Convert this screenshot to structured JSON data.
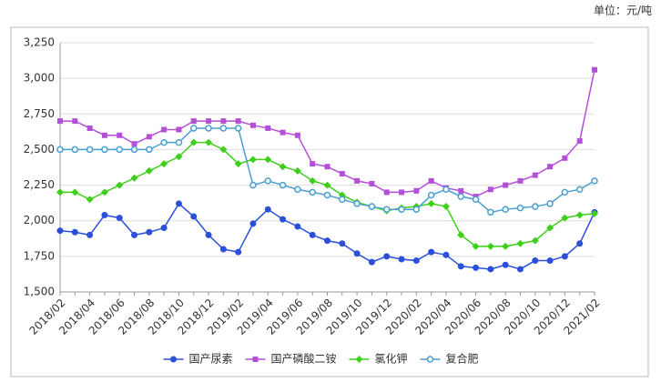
{
  "chart_data": {
    "type": "line",
    "unit": "单位：元/吨",
    "categories": [
      "2018/02",
      null,
      "2018/04",
      null,
      "2018/06",
      null,
      "2018/08",
      null,
      "2018/10",
      null,
      "2018/12",
      null,
      "2019/02",
      null,
      "2019/04",
      null,
      "2019/06",
      null,
      "2019/08",
      null,
      "2019/10",
      null,
      "2019/12",
      null,
      "2020/02",
      null,
      "2020/04",
      null,
      "2020/06",
      null,
      "2020/08",
      null,
      "2020/10",
      null,
      "2020/12",
      null,
      "2021/02"
    ],
    "series": [
      {
        "name": "国产尿素",
        "color": "#2b4fd8",
        "marker": "circle",
        "values": [
          1930,
          1920,
          1900,
          2040,
          2020,
          1900,
          1920,
          1950,
          2120,
          2030,
          1900,
          1800,
          1780,
          1980,
          2080,
          2010,
          1960,
          1900,
          1860,
          1840,
          1770,
          1710,
          1750,
          1730,
          1720,
          1780,
          1760,
          1680,
          1670,
          1660,
          1690,
          1660,
          1720,
          1720,
          1750,
          1840,
          2060
        ]
      },
      {
        "name": "国产磷酸二铵",
        "color": "#b44fd8",
        "marker": "square",
        "values": [
          2700,
          2700,
          2650,
          2600,
          2600,
          2540,
          2590,
          2640,
          2640,
          2700,
          2700,
          2700,
          2700,
          2670,
          2650,
          2620,
          2600,
          2400,
          2380,
          2330,
          2280,
          2260,
          2200,
          2200,
          2210,
          2280,
          2230,
          2210,
          2170,
          2220,
          2250,
          2280,
          2320,
          2380,
          2440,
          2560,
          3060
        ]
      },
      {
        "name": "氯化钾",
        "color": "#3ecf1a",
        "marker": "diamond",
        "values": [
          2200,
          2200,
          2150,
          2200,
          2250,
          2300,
          2350,
          2400,
          2450,
          2550,
          2550,
          2500,
          2400,
          2430,
          2430,
          2380,
          2350,
          2280,
          2250,
          2180,
          2130,
          2100,
          2070,
          2090,
          2100,
          2120,
          2100,
          1900,
          1820,
          1820,
          1820,
          1840,
          1860,
          1950,
          2020,
          2040,
          2050
        ]
      },
      {
        "name": "复合肥",
        "color": "#4a9fd0",
        "marker": "hollow-circle",
        "values": [
          2500,
          2500,
          2500,
          2500,
          2500,
          2500,
          2500,
          2550,
          2550,
          2650,
          2650,
          2650,
          2650,
          2250,
          2280,
          2250,
          2220,
          2200,
          2180,
          2150,
          2120,
          2100,
          2080,
          2080,
          2080,
          2180,
          2220,
          2170,
          2150,
          2060,
          2080,
          2090,
          2100,
          2120,
          2200,
          2220,
          2280
        ]
      }
    ],
    "ylim": [
      1500,
      3250
    ],
    "yticks": [
      {
        "value": 1500,
        "label": "1,500"
      },
      {
        "value": 1750,
        "label": "1,750"
      },
      {
        "value": 2000,
        "label": "2,000"
      },
      {
        "value": 2250,
        "label": "2,250"
      },
      {
        "value": 2500,
        "label": "2,500"
      },
      {
        "value": 2750,
        "label": "2,750"
      },
      {
        "value": 3000,
        "label": "3,000"
      },
      {
        "value": 3250,
        "label": "3,250"
      }
    ],
    "grid": true,
    "legend": "bottom"
  }
}
